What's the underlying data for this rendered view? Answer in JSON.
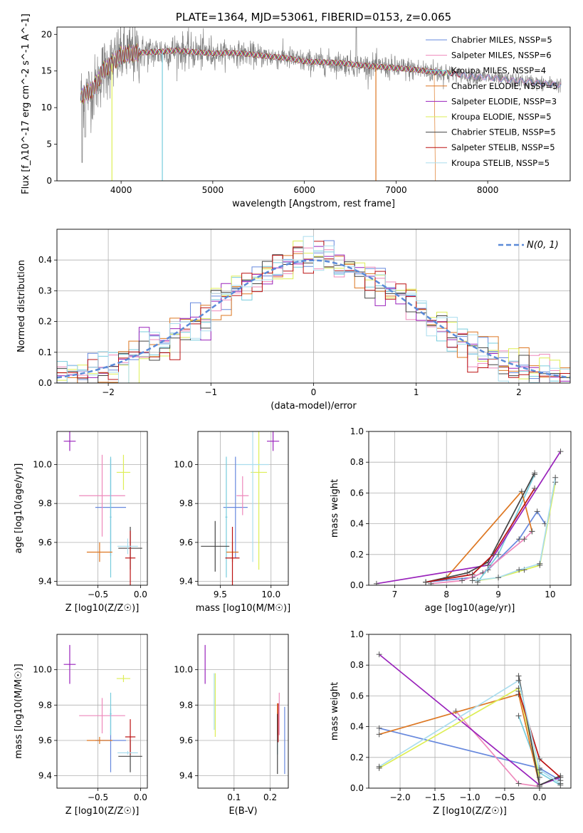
{
  "colors": {
    "series": [
      "#6688dd",
      "#ee88bb",
      "#77ccdd",
      "#dd7722",
      "#9922bb",
      "#ddee55",
      "#444444",
      "#bb1111",
      "#aaddee"
    ],
    "gaussian": "#5b8ad8",
    "grid": "#b0b0b0",
    "data_spectrum": "#808080",
    "model_green": "#66aa66"
  },
  "series_names": [
    "Chabrier MILES, N_SSP=5",
    "Salpeter MILES, N_SSP=6",
    "Kroupa MILES, N_SSP=4",
    "Chabrier ELODIE, N_SSP=5",
    "Salpeter ELODIE, N_SSP=3",
    "Kroupa ELODIE, N_SSP=5",
    "Chabrier STELIB, N_SSP=5",
    "Salpeter STELIB, N_SSP=5",
    "Kroupa STELIB, N_SSP=5"
  ],
  "chart_data": [
    {
      "id": "spectrum",
      "type": "line",
      "title": "PLATE=1364, MJD=53061, FIBERID=0153, z=0.065",
      "xlabel": "wavelength [Angstrom, rest frame]",
      "ylabel": "Flux [f_λ10^-17 erg cm^-2 s^-1 A^-1]",
      "xlim": [
        3300,
        8900
      ],
      "ylim": [
        0,
        21
      ],
      "xticks": [
        4000,
        5000,
        6000,
        7000,
        8000
      ],
      "yticks": [
        0,
        5,
        10,
        15,
        20
      ],
      "legend": "top-right",
      "grid": false,
      "continuum": {
        "x": [
          3550,
          3700,
          3800,
          3900,
          4000,
          4200,
          4400,
          4600,
          4800,
          5000,
          5200,
          5400,
          5600,
          5800,
          6000,
          6200,
          6400,
          6600,
          6800,
          7000,
          7200,
          7400,
          7600,
          7800,
          8000,
          8200,
          8400,
          8600,
          8800
        ],
        "y": [
          11.5,
          12.5,
          15.0,
          16.0,
          17.2,
          17.5,
          17.6,
          17.8,
          17.6,
          17.4,
          17.5,
          17.3,
          17.0,
          16.8,
          16.3,
          16.2,
          16.1,
          15.8,
          15.6,
          15.4,
          15.2,
          14.9,
          14.7,
          14.3,
          14.1,
          13.8,
          13.6,
          13.3,
          13.1
        ]
      }
    },
    {
      "id": "residuals",
      "type": "step",
      "xlabel": "(data-model)/error",
      "ylabel": "Normed distribution",
      "xlim": [
        -2.5,
        2.5
      ],
      "ylim": [
        0,
        0.5
      ],
      "xticks": [
        -2,
        -1,
        0,
        1,
        2
      ],
      "yticks": [
        0,
        0.1,
        0.2,
        0.3,
        0.4
      ],
      "grid": true,
      "legend": "top-right",
      "gaussian_label": "N(0, 1)",
      "bin_width": 0.1,
      "bin_start": -2.5
    },
    {
      "id": "age_vs_Z",
      "type": "scatter",
      "xlabel": "Z [log10(Z/Z☉)]",
      "ylabel": "age  [log10(age/yr)]",
      "xlim": [
        -0.98,
        0.08
      ],
      "ylim": [
        9.38,
        10.17
      ],
      "xticks": [
        -0.5,
        0.0
      ],
      "yticks": [
        9.4,
        9.6,
        9.8,
        10.0
      ],
      "grid": true,
      "points": [
        {
          "x": -0.35,
          "y": 9.78,
          "xerr": 0.18,
          "yerr": 0.25
        },
        {
          "x": -0.45,
          "y": 9.84,
          "xerr": 0.27,
          "yerr": 0.21
        },
        {
          "x": -0.35,
          "y": 9.73,
          "xerr": 0.01,
          "yerr": 0.31
        },
        {
          "x": -0.48,
          "y": 9.55,
          "xerr": 0.15,
          "yerr": 0.05
        },
        {
          "x": -0.83,
          "y": 10.12,
          "xerr": 0.07,
          "yerr": 0.05
        },
        {
          "x": -0.2,
          "y": 9.96,
          "xerr": 0.08,
          "yerr": 0.09
        },
        {
          "x": -0.12,
          "y": 9.57,
          "xerr": 0.14,
          "yerr": 0.11
        },
        {
          "x": -0.12,
          "y": 9.52,
          "xerr": 0.06,
          "yerr": 0.14
        },
        {
          "x": -0.15,
          "y": 9.58,
          "xerr": 0.12,
          "yerr": 0.04
        }
      ]
    },
    {
      "id": "age_vs_mass",
      "type": "scatter",
      "xlabel": "mass [log10(M/M☉)]",
      "xlim": [
        9.28,
        10.17
      ],
      "ylim": [
        9.38,
        10.17
      ],
      "xticks": [
        9.5,
        10.0
      ],
      "yticks": [
        9.4,
        9.6,
        9.8,
        10.0
      ],
      "grid": true,
      "points": [
        {
          "x": 9.65,
          "y": 9.78,
          "xerr": 0.12,
          "yerr": 0.26
        },
        {
          "x": 9.72,
          "y": 9.84,
          "xerr": 0.06,
          "yerr": 0.1
        },
        {
          "x": 9.56,
          "y": 9.73,
          "xerr": 0.01,
          "yerr": 0.31
        },
        {
          "x": 9.62,
          "y": 9.55,
          "xerr": 0.06,
          "yerr": 0.05
        },
        {
          "x": 10.02,
          "y": 10.12,
          "xerr": 0.06,
          "yerr": 0.05
        },
        {
          "x": 9.88,
          "y": 9.96,
          "xerr": 0.08,
          "yerr": 0.5
        },
        {
          "x": 9.45,
          "y": 9.58,
          "xerr": 0.14,
          "yerr": 0.13
        },
        {
          "x": 9.62,
          "y": 9.52,
          "xerr": 0.07,
          "yerr": 0.16
        },
        {
          "x": 9.82,
          "y": 10.0,
          "xerr": 0.16,
          "yerr": 0.5
        }
      ]
    },
    {
      "id": "mass_weight_vs_age",
      "type": "line",
      "xlabel": "age  [log10(age/yr)]",
      "ylabel": "mass weight",
      "xlim": [
        6.5,
        10.4
      ],
      "ylim": [
        0,
        1
      ],
      "xticks": [
        7,
        8,
        9,
        10
      ],
      "yticks": [
        0,
        0.2,
        0.4,
        0.6,
        0.8,
        1.0
      ],
      "grid": true,
      "series": [
        {
          "x": [
            7.6,
            8.5,
            8.8,
            9.4,
            9.75,
            9.9
          ],
          "y": [
            0.02,
            0.05,
            0.1,
            0.3,
            0.48,
            0.4
          ]
        },
        {
          "x": [
            7.7,
            8.3,
            8.7,
            9.5,
            9.65
          ],
          "y": [
            0.01,
            0.03,
            0.08,
            0.3,
            0.35
          ]
        },
        {
          "x": [
            8.6,
            9.0,
            9.7
          ],
          "y": [
            0.02,
            0.2,
            0.72
          ]
        },
        {
          "x": [
            7.6,
            8.0,
            9.45,
            9.65
          ],
          "y": [
            0.02,
            0.05,
            0.61,
            0.35
          ]
        },
        {
          "x": [
            6.65,
            8.8,
            10.2
          ],
          "y": [
            0.01,
            0.13,
            0.87
          ]
        },
        {
          "x": [
            8.6,
            9.0,
            9.5,
            9.8,
            10.1
          ],
          "y": [
            0.03,
            0.05,
            0.1,
            0.13,
            0.67
          ]
        },
        {
          "x": [
            7.6,
            8.4,
            8.8,
            9.7
          ],
          "y": [
            0.02,
            0.08,
            0.15,
            0.73
          ]
        },
        {
          "x": [
            7.6,
            8.5,
            8.9,
            9.7
          ],
          "y": [
            0.02,
            0.07,
            0.2,
            0.63
          ]
        },
        {
          "x": [
            8.5,
            9.0,
            9.4,
            9.8,
            10.1
          ],
          "y": [
            0.03,
            0.05,
            0.1,
            0.14,
            0.7
          ]
        }
      ]
    },
    {
      "id": "mass_vs_Z",
      "type": "scatter",
      "xlabel": "Z [log10(Z/Z☉)]",
      "ylabel": "mass [log10(M/M☉)]",
      "xlim": [
        -0.98,
        0.08
      ],
      "ylim": [
        9.33,
        10.2
      ],
      "xticks": [
        -0.5,
        0.0
      ],
      "yticks": [
        9.4,
        9.6,
        9.8,
        10.0
      ],
      "grid": true,
      "points": [
        {
          "x": -0.35,
          "y": 9.6,
          "xerr": 0.18,
          "yerr": 0.18
        },
        {
          "x": -0.45,
          "y": 9.74,
          "xerr": 0.27,
          "yerr": 0.1
        },
        {
          "x": -0.35,
          "y": 9.75,
          "xerr": 0.01,
          "yerr": 0.12
        },
        {
          "x": -0.48,
          "y": 9.6,
          "xerr": 0.15,
          "yerr": 0.02
        },
        {
          "x": -0.83,
          "y": 10.03,
          "xerr": 0.07,
          "yerr": 0.11
        },
        {
          "x": -0.2,
          "y": 9.95,
          "xerr": 0.08,
          "yerr": 0.02
        },
        {
          "x": -0.12,
          "y": 9.51,
          "xerr": 0.14,
          "yerr": 0.09
        },
        {
          "x": -0.12,
          "y": 9.62,
          "xerr": 0.06,
          "yerr": 0.1
        },
        {
          "x": -0.15,
          "y": 9.53,
          "xerr": 0.12,
          "yerr": 0.01
        }
      ]
    },
    {
      "id": "mass_vs_EBV",
      "type": "scatter",
      "xlabel": "E(B-V)",
      "xlim": [
        0.0,
        0.25
      ],
      "ylim": [
        9.33,
        10.2
      ],
      "xticks": [
        0.1,
        0.2
      ],
      "yticks": [
        9.4,
        9.6,
        9.8,
        10.0
      ],
      "grid": true,
      "points": [
        {
          "x": 0.24,
          "y": 9.6,
          "yerr": 0.19
        },
        {
          "x": 0.225,
          "y": 9.75,
          "yerr": 0.12
        },
        {
          "x": 0.22,
          "y": 9.64,
          "yerr": 0.12
        },
        {
          "x": 0.22,
          "y": 9.72,
          "yerr": 0.09
        },
        {
          "x": 0.02,
          "y": 10.03,
          "yerr": 0.11
        },
        {
          "x": 0.048,
          "y": 9.8,
          "yerr": 0.18
        },
        {
          "x": 0.22,
          "y": 9.58,
          "yerr": 0.17
        },
        {
          "x": 0.222,
          "y": 9.7,
          "yerr": 0.11
        },
        {
          "x": 0.045,
          "y": 9.82,
          "yerr": 0.16
        }
      ]
    },
    {
      "id": "mass_weight_vs_Z",
      "type": "line",
      "xlabel": "Z [log10(Z/Z☉)]",
      "ylabel": "mass weight",
      "xlim": [
        -2.45,
        0.45
      ],
      "ylim": [
        0,
        1
      ],
      "xticks": [
        -2.0,
        -1.5,
        -1.0,
        -0.5,
        0.0
      ],
      "yticks": [
        0,
        0.2,
        0.4,
        0.6,
        0.8,
        1.0
      ],
      "grid": true,
      "series": [
        {
          "x": [
            -2.3,
            -0.0,
            0.3
          ],
          "y": [
            0.39,
            0.13,
            0.05
          ]
        },
        {
          "x": [
            -1.2,
            -0.3,
            0.0
          ],
          "y": [
            0.5,
            0.03,
            0.01
          ]
        },
        {
          "x": [
            -0.3,
            0.0,
            0.3
          ],
          "y": [
            0.47,
            0.1,
            0.02
          ]
        },
        {
          "x": [
            -2.3,
            -0.3,
            0.0
          ],
          "y": [
            0.35,
            0.61,
            0.02
          ]
        },
        {
          "x": [
            -2.3,
            0.0,
            0.3
          ],
          "y": [
            0.87,
            0.02,
            0.07
          ]
        },
        {
          "x": [
            -2.3,
            -0.3,
            0.0
          ],
          "y": [
            0.13,
            0.65,
            0.07
          ]
        },
        {
          "x": [
            -0.3,
            0.0,
            0.3
          ],
          "y": [
            0.73,
            0.02,
            0.08
          ]
        },
        {
          "x": [
            -0.3,
            0.0,
            0.3
          ],
          "y": [
            0.63,
            0.19,
            0.07
          ]
        },
        {
          "x": [
            -2.3,
            -0.3,
            0.0,
            0.3
          ],
          "y": [
            0.14,
            0.7,
            0.12,
            0.03
          ]
        }
      ]
    }
  ]
}
